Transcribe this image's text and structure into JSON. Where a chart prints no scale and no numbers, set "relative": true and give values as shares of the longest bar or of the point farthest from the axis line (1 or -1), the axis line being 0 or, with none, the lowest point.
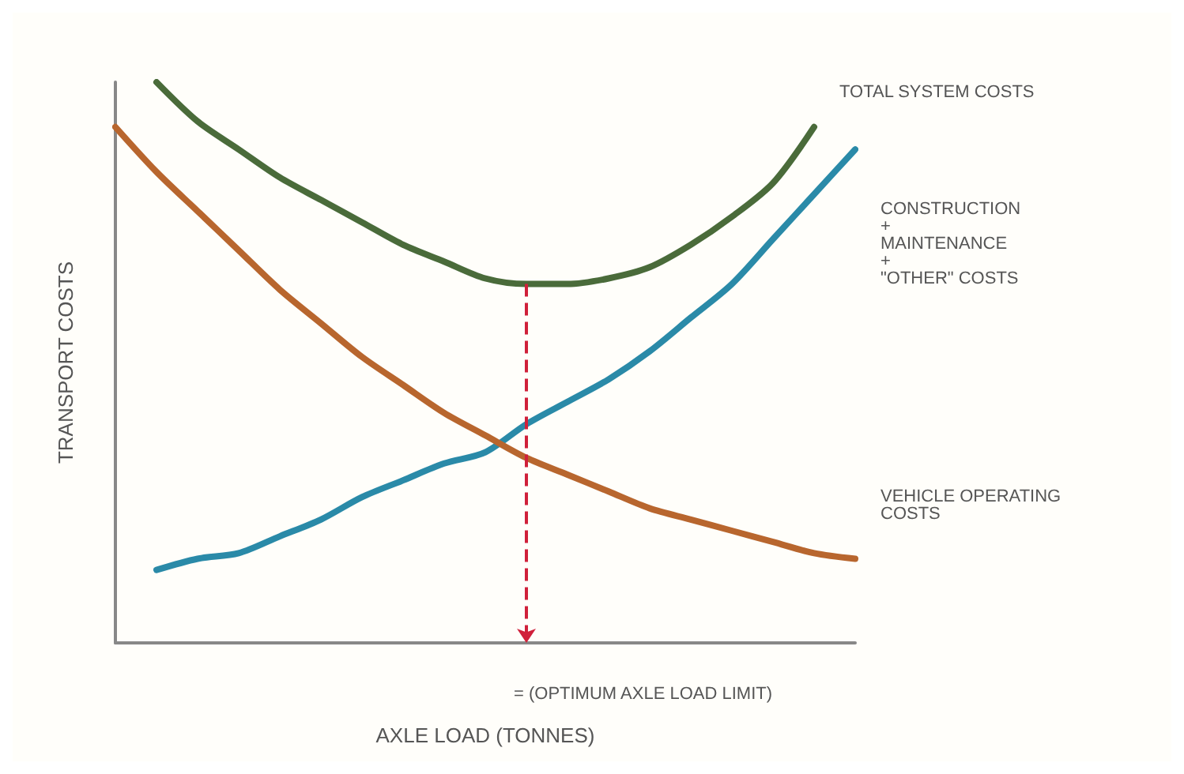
{
  "chart_data": {
    "type": "line",
    "relative": true,
    "xlabel": "AXLE LOAD (TONNES)",
    "ylabel": "TRANSPORT COSTS",
    "categories": [
      null,
      null,
      null,
      null,
      null,
      null,
      null,
      null,
      null,
      null,
      null,
      null,
      null,
      null,
      null,
      null,
      null,
      null,
      null
    ],
    "series": [
      {
        "name": "TOTAL SYSTEM COSTS",
        "color": "#4a6b3a",
        "values": [
          null,
          1,
          0.93,
          0.88,
          0.83,
          0.79,
          0.75,
          0.71,
          0.68,
          0.65,
          0.64,
          0.64,
          0.65,
          0.67,
          0.71,
          0.76,
          0.82,
          0.92,
          null
        ]
      },
      {
        "name": "CONSTRUCTION\n+\nMAINTENANCE\n+\n\"OTHER\" COSTS",
        "color": "#2a8aa8",
        "values": [
          null,
          0.13,
          0.15,
          0.16,
          0.19,
          0.22,
          0.26,
          0.29,
          0.32,
          0.34,
          0.39,
          0.43,
          0.47,
          0.52,
          0.58,
          0.64,
          0.72,
          0.8,
          0.88
        ]
      },
      {
        "name": "VEHICLE OPERATING\nCOSTS",
        "color": "#b8662e",
        "values": [
          0.92,
          0.84,
          0.77,
          0.7,
          0.63,
          0.57,
          0.51,
          0.46,
          0.41,
          0.37,
          0.33,
          0.3,
          0.27,
          0.24,
          0.22,
          0.2,
          0.18,
          0.16,
          0.15
        ]
      }
    ],
    "annotations": [
      "= (OPTIMUM AXLE LOAD LIMIT)"
    ],
    "legend": false,
    "grid": false,
    "marker": "none",
    "line_style": "solid"
  }
}
